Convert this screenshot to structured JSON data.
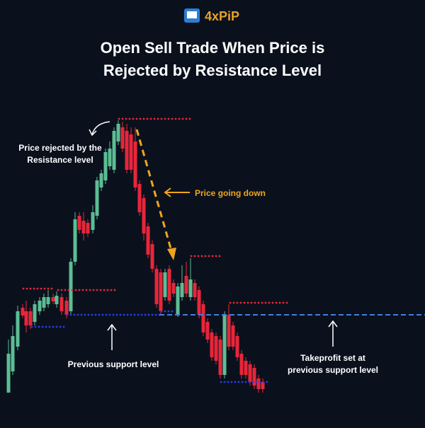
{
  "logo": {
    "text": "4xPiP"
  },
  "title": {
    "line1": "Open Sell Trade When Price is",
    "line2": "Rejected by Resistance Level"
  },
  "annotations": {
    "rejected": {
      "line1": "Price rejected by the",
      "line2": "Resistance level"
    },
    "going_down": "Price going down",
    "previous_support": "Previous support level",
    "takeprofit": {
      "line1": "Takeprofit set at",
      "line2": "previous support level"
    }
  }
}
